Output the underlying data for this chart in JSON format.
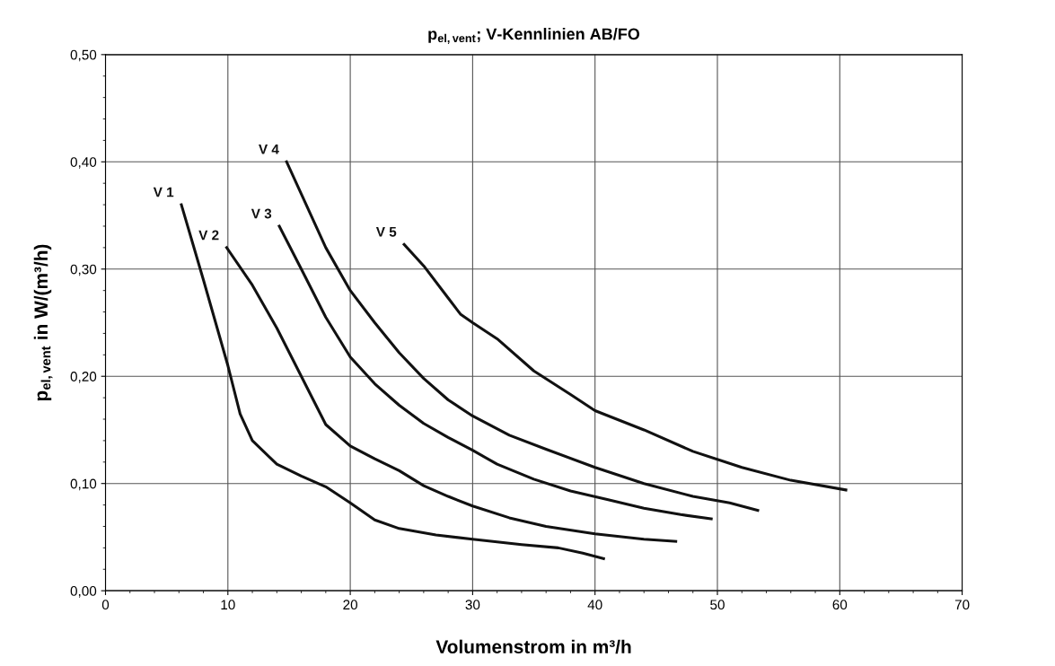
{
  "chart_data": {
    "type": "line",
    "title": "p$_{el,vent}$; V-Kennlinien AB/FO",
    "xlabel": "Volumenstrom in m³/h",
    "ylabel": "p$_{el,vent}$ in W/(m³/h)",
    "xlim": [
      0,
      70
    ],
    "xticks": [
      0,
      10,
      20,
      30,
      40,
      50,
      60,
      70
    ],
    "ylim": [
      0,
      0.5
    ],
    "yticks": [
      {
        "value": 0,
        "label": "0,00"
      },
      {
        "value": 0.1,
        "label": "0,10"
      },
      {
        "value": 0.2,
        "label": "0,20"
      },
      {
        "value": 0.3,
        "label": "0,30"
      },
      {
        "value": 0.4,
        "label": "0,40"
      },
      {
        "value": 0.5,
        "label": "0,50"
      }
    ],
    "grid": true,
    "legend": false,
    "marker": "none",
    "line_style": "solid",
    "series": [
      {
        "name": "V 1",
        "color": "#111111",
        "x": [
          6.2,
          8,
          10,
          11,
          12,
          14,
          16,
          18,
          20,
          22,
          24,
          27,
          30,
          34,
          37,
          39,
          40.7
        ],
        "values": [
          0.36,
          0.29,
          0.21,
          0.165,
          0.14,
          0.118,
          0.107,
          0.097,
          0.082,
          0.066,
          0.058,
          0.052,
          0.048,
          0.043,
          0.04,
          0.035,
          0.03
        ]
      },
      {
        "name": "V 2",
        "color": "#111111",
        "x": [
          9.9,
          12,
          14,
          16,
          18,
          20,
          22,
          24,
          26,
          28,
          30,
          33,
          36,
          40,
          44,
          46.6
        ],
        "values": [
          0.32,
          0.285,
          0.245,
          0.2,
          0.155,
          0.135,
          0.123,
          0.112,
          0.098,
          0.088,
          0.079,
          0.068,
          0.06,
          0.053,
          0.048,
          0.046
        ]
      },
      {
        "name": "V 3",
        "color": "#111111",
        "x": [
          14.2,
          16,
          18,
          20,
          22,
          24,
          26,
          28,
          30,
          32,
          35,
          38,
          41,
          44,
          47,
          49.5
        ],
        "values": [
          0.34,
          0.3,
          0.255,
          0.218,
          0.193,
          0.173,
          0.156,
          0.143,
          0.131,
          0.118,
          0.104,
          0.093,
          0.085,
          0.077,
          0.071,
          0.067
        ]
      },
      {
        "name": "V 4",
        "color": "#111111",
        "x": [
          14.8,
          16,
          18,
          20,
          22,
          24,
          26,
          28,
          30,
          33,
          36,
          40,
          44,
          48,
          51,
          53.3
        ],
        "values": [
          0.4,
          0.37,
          0.32,
          0.28,
          0.25,
          0.222,
          0.198,
          0.178,
          0.163,
          0.145,
          0.132,
          0.115,
          0.1,
          0.088,
          0.082,
          0.075
        ]
      },
      {
        "name": "V 5",
        "color": "#111111",
        "x": [
          24.4,
          26,
          28,
          29,
          30,
          32,
          35,
          38,
          40,
          44,
          48,
          52,
          56,
          60.5
        ],
        "values": [
          0.323,
          0.303,
          0.273,
          0.258,
          0.25,
          0.235,
          0.205,
          0.183,
          0.168,
          0.15,
          0.13,
          0.115,
          0.103,
          0.094
        ]
      }
    ]
  }
}
